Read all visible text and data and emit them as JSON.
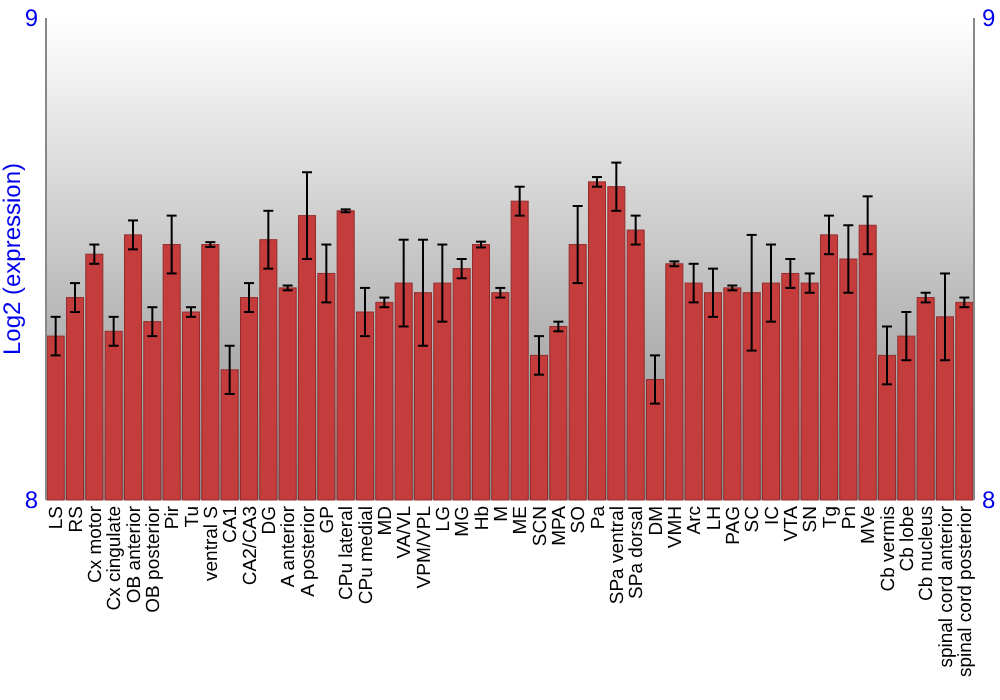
{
  "chart_data": {
    "type": "bar",
    "ylabel": "Log2 (expression)",
    "categories": [
      "LS",
      "RS",
      "Cx motor",
      "Cx cingulate",
      "OB anterior",
      "OB posterior",
      "Pir",
      "Tu",
      "ventral S",
      "CA1",
      "CA2/CA3",
      "DG",
      "A anterior",
      "A posterior",
      "GP",
      "CPu lateral",
      "CPu medial",
      "MD",
      "VA/VL",
      "VPM/VPL",
      "LG",
      "MG",
      "Hb",
      "M",
      "ME",
      "SCN",
      "MPA",
      "SO",
      "Pa",
      "SPa ventral",
      "SPa dorsal",
      "DM",
      "VMH",
      "Arc",
      "LH",
      "PAG",
      "SC",
      "IC",
      "VTA",
      "SN",
      "Tg",
      "Pn",
      "MVe",
      "Cb vermis",
      "Cb lobe",
      "Cb nucleus",
      "spinal cord anterior",
      "spinal cord posterior"
    ],
    "values": [
      8.34,
      8.42,
      8.51,
      8.35,
      8.55,
      8.37,
      8.53,
      8.39,
      8.53,
      8.27,
      8.42,
      8.54,
      8.44,
      8.59,
      8.47,
      8.6,
      8.39,
      8.41,
      8.45,
      8.43,
      8.45,
      8.48,
      8.53,
      8.43,
      8.62,
      8.3,
      8.36,
      8.53,
      8.66,
      8.65,
      8.56,
      8.25,
      8.49,
      8.45,
      8.43,
      8.44,
      8.43,
      8.45,
      8.47,
      8.45,
      8.55,
      8.5,
      8.57,
      8.3,
      8.34,
      8.42,
      8.38,
      8.41
    ],
    "errors": [
      0.04,
      0.03,
      0.02,
      0.03,
      0.03,
      0.03,
      0.06,
      0.01,
      0.005,
      0.05,
      0.03,
      0.06,
      0.005,
      0.09,
      0.06,
      0.003,
      0.05,
      0.01,
      0.09,
      0.11,
      0.08,
      0.02,
      0.006,
      0.01,
      0.03,
      0.04,
      0.01,
      0.08,
      0.01,
      0.05,
      0.03,
      0.05,
      0.005,
      0.04,
      0.05,
      0.005,
      0.12,
      0.08,
      0.03,
      0.02,
      0.04,
      0.07,
      0.06,
      0.06,
      0.05,
      0.01,
      0.09,
      0.01
    ],
    "color": "#c43c3c",
    "ylim": [
      8,
      9
    ],
    "yticks": [
      8,
      9
    ],
    "y2lim": [
      8,
      9
    ],
    "y2ticks": [
      8,
      9
    ],
    "grid": false
  }
}
